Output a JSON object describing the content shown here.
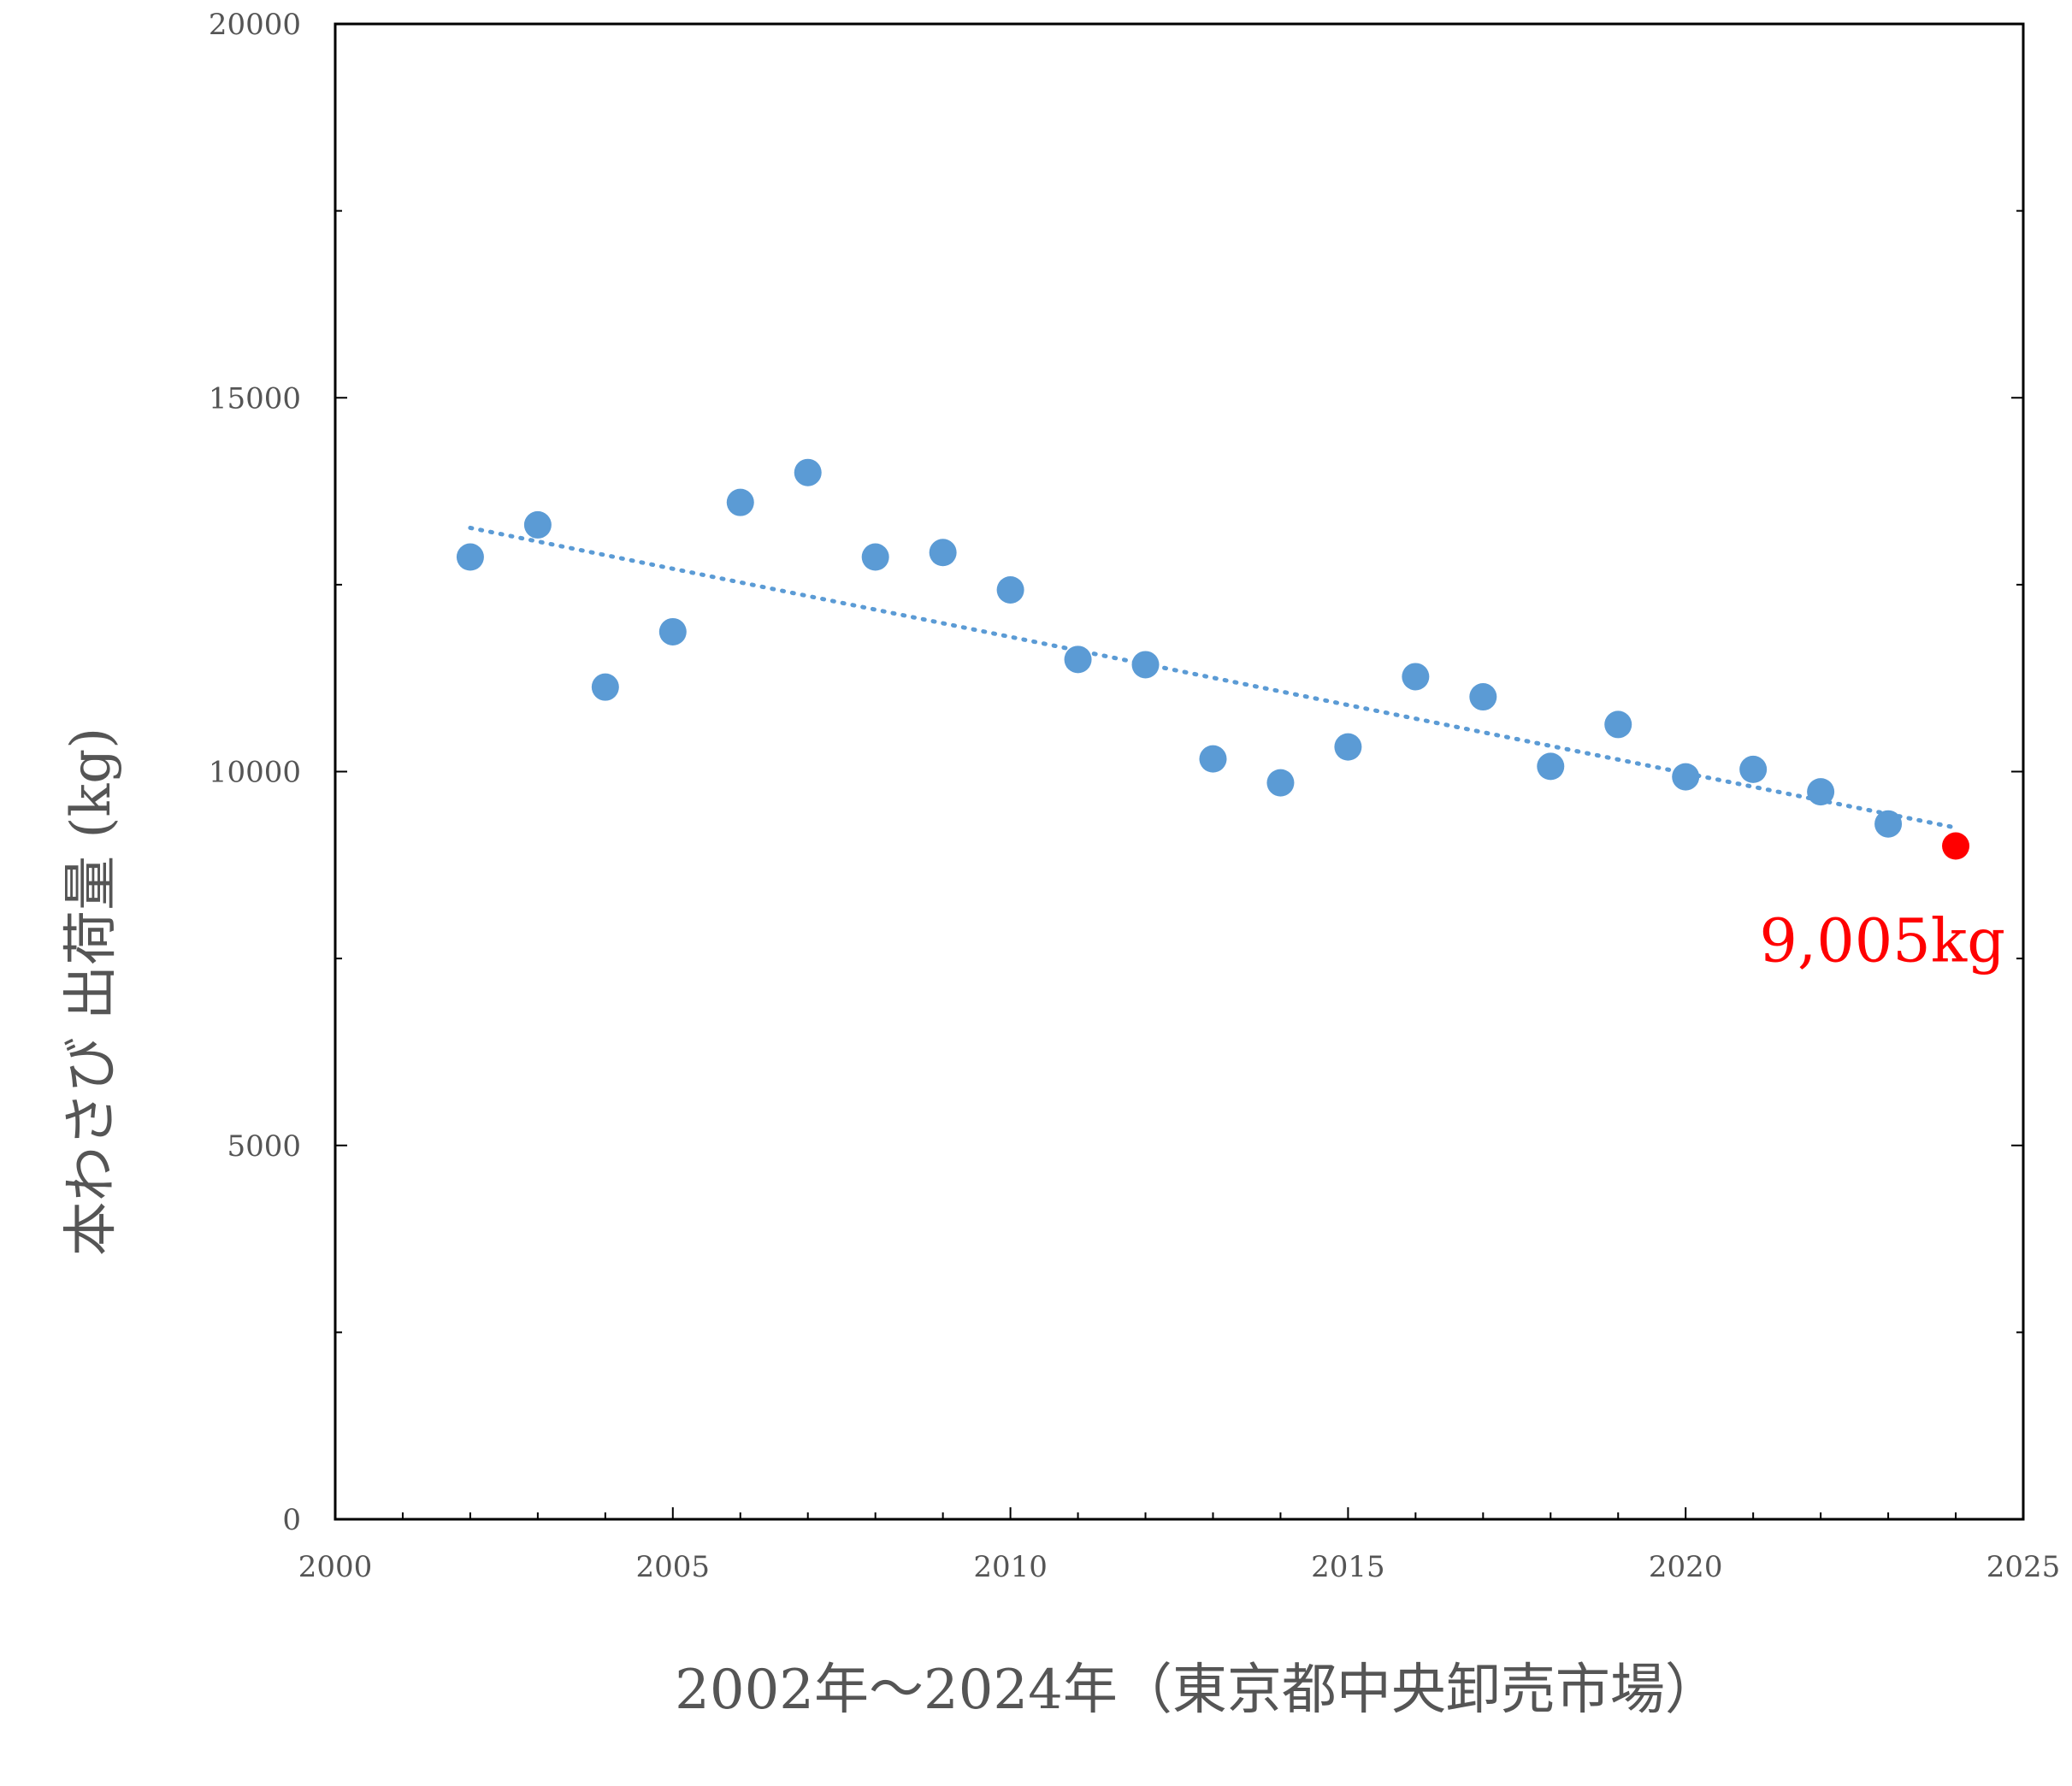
{
  "chart_data": {
    "type": "scatter",
    "title": "",
    "xlabel": "2002年～2024年（東京都中央卸売市場）",
    "ylabel": "本わさび 出荷量 (kg)",
    "xlim": [
      2000,
      2025
    ],
    "ylim": [
      0,
      20000
    ],
    "x_ticks": [
      2000,
      2005,
      2010,
      2015,
      2020,
      2025
    ],
    "y_ticks": [
      0,
      5000,
      10000,
      15000,
      20000
    ],
    "grid": false,
    "legend": "none",
    "series": [
      {
        "color": "#5b9bd5",
        "points": [
          {
            "x": 2002,
            "y": 12870
          },
          {
            "x": 2003,
            "y": 13300
          },
          {
            "x": 2004,
            "y": 11130
          },
          {
            "x": 2005,
            "y": 11870
          },
          {
            "x": 2006,
            "y": 13600
          },
          {
            "x": 2007,
            "y": 14000
          },
          {
            "x": 2008,
            "y": 12870
          },
          {
            "x": 2009,
            "y": 12930
          },
          {
            "x": 2010,
            "y": 12430
          },
          {
            "x": 2011,
            "y": 11500
          },
          {
            "x": 2012,
            "y": 11430
          },
          {
            "x": 2013,
            "y": 10170
          },
          {
            "x": 2014,
            "y": 9850
          },
          {
            "x": 2015,
            "y": 10330
          },
          {
            "x": 2016,
            "y": 11270
          },
          {
            "x": 2017,
            "y": 11000
          },
          {
            "x": 2018,
            "y": 10070
          },
          {
            "x": 2019,
            "y": 10630
          },
          {
            "x": 2020,
            "y": 9930
          },
          {
            "x": 2021,
            "y": 10030
          },
          {
            "x": 2022,
            "y": 9730
          },
          {
            "x": 2023,
            "y": 9300
          }
        ]
      },
      {
        "color": "#ff0000",
        "points": [
          {
            "x": 2024,
            "y": 9005
          }
        ]
      }
    ],
    "trendline": {
      "style": "dotted",
      "color": "#5b9bd5",
      "from": {
        "x": 2002,
        "y": 13260
      },
      "to": {
        "x": 2024,
        "y": 9250
      }
    },
    "annotations": [
      {
        "text": "9,005kg",
        "x": 2024,
        "y": 9005,
        "color": "#ff0000"
      }
    ]
  }
}
